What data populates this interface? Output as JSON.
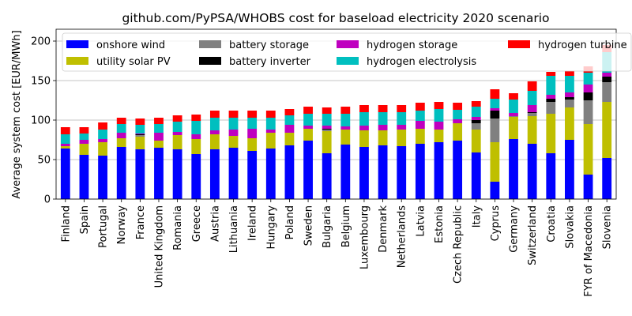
{
  "chart_data": {
    "type": "bar",
    "stacked": true,
    "title": "github.com/PyPSA/WHOBS cost for baseload electricity 2020 scenario",
    "xlabel": "",
    "ylabel": "Average system cost [EUR/MWh]",
    "ylim": [
      0,
      215
    ],
    "yticks": [
      0,
      50,
      100,
      150,
      200
    ],
    "grid": "horizontal",
    "legend_position": "top",
    "categories": [
      "Finland",
      "Spain",
      "Portugal",
      "Norway",
      "France",
      "United Kingdom",
      "Romania",
      "Greece",
      "Austria",
      "Lithuania",
      "Ireland",
      "Hungary",
      "Poland",
      "Sweden",
      "Bulgaria",
      "Belgium",
      "Luxembourg",
      "Denmark",
      "Netherlands",
      "Latvia",
      "Estonia",
      "Czech Republic",
      "Italy",
      "Cyprus",
      "Germany",
      "Switzerland",
      "Croatia",
      "Slovakia",
      "FYR of Macedonia",
      "Slovenia"
    ],
    "series": [
      {
        "name": "onshore wind",
        "color": "#0000ff",
        "values": [
          64,
          56,
          55,
          66,
          63,
          65,
          63,
          57,
          63,
          65,
          61,
          64,
          68,
          74,
          58,
          69,
          66,
          68,
          67,
          70,
          72,
          74,
          59,
          22,
          76,
          70,
          58,
          75,
          31,
          52
        ]
      },
      {
        "name": "utility solar PV",
        "color": "#bfbf00",
        "values": [
          3,
          14,
          17,
          11,
          16,
          9,
          18,
          19,
          19,
          15,
          16,
          20,
          16,
          15,
          28,
          19,
          21,
          19,
          21,
          19,
          16,
          22,
          29,
          50,
          28,
          35,
          50,
          41,
          64,
          71
        ]
      },
      {
        "name": "battery storage",
        "color": "#808080",
        "values": [
          0,
          0,
          0,
          0,
          2,
          0,
          0,
          0,
          0,
          0,
          0,
          0,
          0,
          0,
          2,
          0,
          0,
          0,
          0,
          0,
          0,
          0,
          8,
          30,
          1,
          4,
          15,
          10,
          30,
          25
        ]
      },
      {
        "name": "battery inverter",
        "color": "#000000",
        "values": [
          0,
          0,
          0,
          0,
          1,
          0,
          0,
          0,
          0,
          0,
          0,
          0,
          0,
          0,
          1,
          0,
          0,
          0,
          0,
          0,
          0,
          0,
          4,
          10,
          0,
          1,
          4,
          3,
          10,
          7
        ]
      },
      {
        "name": "hydrogen storage",
        "color": "#bf00bf",
        "values": [
          3,
          5,
          4,
          7,
          1,
          10,
          4,
          6,
          5,
          8,
          12,
          4,
          10,
          4,
          4,
          4,
          6,
          7,
          6,
          10,
          10,
          5,
          4,
          3,
          4,
          9,
          5,
          6,
          10,
          5
        ]
      },
      {
        "name": "hydrogen electrolysis",
        "color": "#00bfbf",
        "values": [
          12,
          8,
          12,
          11,
          11,
          11,
          13,
          17,
          16,
          15,
          14,
          15,
          12,
          15,
          15,
          16,
          17,
          16,
          16,
          13,
          16,
          12,
          13,
          12,
          17,
          18,
          24,
          21,
          15,
          26
        ]
      },
      {
        "name": "hydrogen turbine",
        "color": "#ff0000",
        "values": [
          9,
          8,
          9,
          8,
          8,
          8,
          8,
          8,
          9,
          9,
          9,
          9,
          8,
          9,
          8,
          9,
          9,
          9,
          9,
          10,
          9,
          9,
          7,
          12,
          8,
          12,
          5,
          6,
          8,
          9
        ]
      }
    ]
  }
}
